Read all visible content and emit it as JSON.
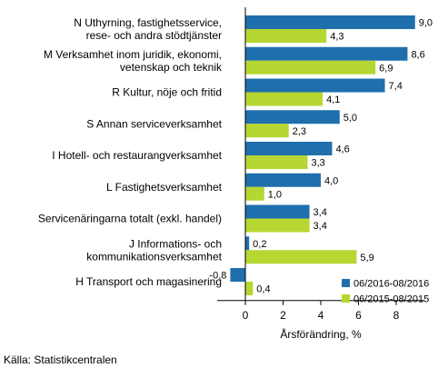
{
  "chart_data": {
    "type": "bar",
    "orientation": "horizontal",
    "categories": [
      [
        "N Uthyrning, fastighetsservice,",
        "rese- och andra stödtjänster"
      ],
      [
        "M Verksamhet inom juridik, ekonomi,",
        "vetenskap och teknik"
      ],
      [
        "R Kultur, nöje och fritid"
      ],
      [
        "S Annan serviceverksamhet"
      ],
      [
        "I Hotell- och restaurangverksamhet"
      ],
      [
        "L Fastighetsverksamhet"
      ],
      [
        "Servicenäringarna totalt (exkl. handel)"
      ],
      [
        "J Informations- och",
        "kommunikationsverksamhet"
      ],
      [
        "H Transport och magasinering"
      ]
    ],
    "series": [
      {
        "name": "06/2016-08/2016",
        "color": "#1f6fad",
        "values": [
          9.0,
          8.6,
          7.4,
          5.0,
          4.6,
          4.0,
          3.4,
          0.2,
          -0.8
        ],
        "labels": [
          "9,0",
          "8,6",
          "7,4",
          "5,0",
          "4,6",
          "4,0",
          "3,4",
          "0,2",
          "-0,8"
        ]
      },
      {
        "name": "06/2015-08/2015",
        "color": "#b6d632",
        "values": [
          4.3,
          6.9,
          4.1,
          2.3,
          3.3,
          1.0,
          3.4,
          5.9,
          0.4
        ],
        "labels": [
          "4,3",
          "6,9",
          "4,1",
          "2,3",
          "3,3",
          "1,0",
          "3,4",
          "5,9",
          "0,4"
        ]
      }
    ],
    "xlim": [
      -1.5,
      9.5
    ],
    "xticks": [
      0,
      2,
      4,
      6,
      8
    ],
    "xtick_labels": [
      "0",
      "2",
      "4",
      "6",
      "8"
    ],
    "xlabel": "Årsförändring, %",
    "legend_position": "bottom-right"
  },
  "source": "Källa: Statistikcentralen"
}
